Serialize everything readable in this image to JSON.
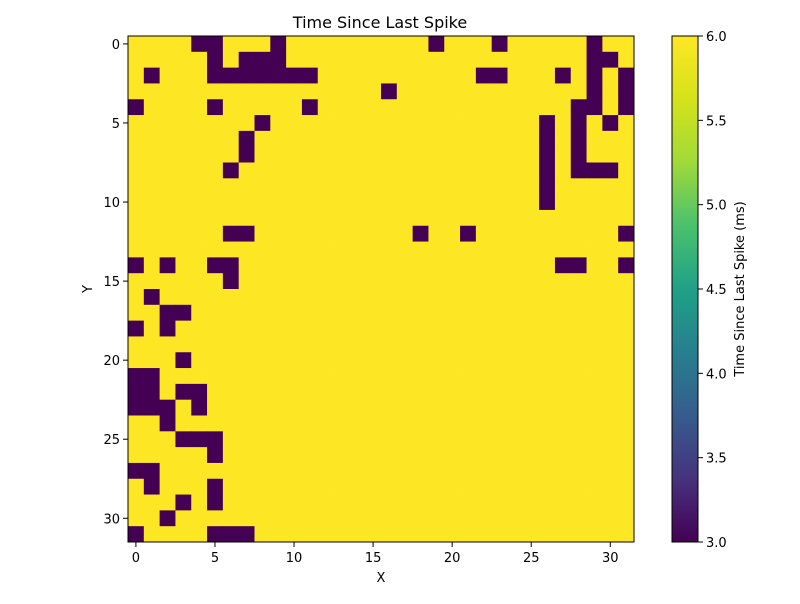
{
  "chart_data": {
    "type": "heatmap",
    "title": "Time Since Last Spike",
    "xlabel": "X",
    "ylabel": "Y",
    "x_ticks": [
      0,
      5,
      10,
      15,
      20,
      25,
      30
    ],
    "y_ticks": [
      0,
      5,
      10,
      15,
      20,
      25,
      30
    ],
    "colorbar": {
      "label": "Time Since Last Spike (ms)",
      "range": [
        3.0,
        6.0
      ],
      "ticks": [
        "3.0",
        "3.5",
        "4.0",
        "4.5",
        "5.0",
        "5.5",
        "6.0"
      ],
      "colormap": "viridis"
    },
    "rows": 32,
    "cols": 32,
    "low_value": 3.0,
    "high_value": 6.0,
    "low_color": "#440154",
    "high_color": "#fde725",
    "grid_rows": [
      "00001100010000000001000100000100",
      "00000101110000000000000000000110",
      "01000111111100000000001100010101",
      "00000000000000001000000000000101",
      "10000100000100000000000000001101",
      "00000000100000000000000000101010",
      "00000001000000000000000000101000",
      "00000001000000000000000000101000",
      "00000010000000000000000000101110",
      "00000000000000000000000000100000",
      "00000000000000000000000000100000",
      "00000000000000000000000000000000",
      "00000011000000000010010000000001",
      "00000000000000000000000000000000",
      "10100110000000000000000000011001",
      "00000010000000000000000000000000",
      "01000000000000000000000000000000",
      "00110000000000000000000000000000",
      "10100000000000000000000000000000",
      "00000000000000000000000000000000",
      "00010000000000000000000000000000",
      "11000000000000000000000000000000",
      "11011000000000000000000000000000",
      "11101000000000000000000000000000",
      "00100000000000000000000000000000",
      "00011100000000000000000000000000",
      "00000100000000000000000000000000",
      "11000000000000000000000000000000",
      "01000100000000000000000000000000",
      "00010100000000000000000000000000",
      "00100000000000000000000000000000",
      "10000111000000000000000000000000"
    ]
  }
}
